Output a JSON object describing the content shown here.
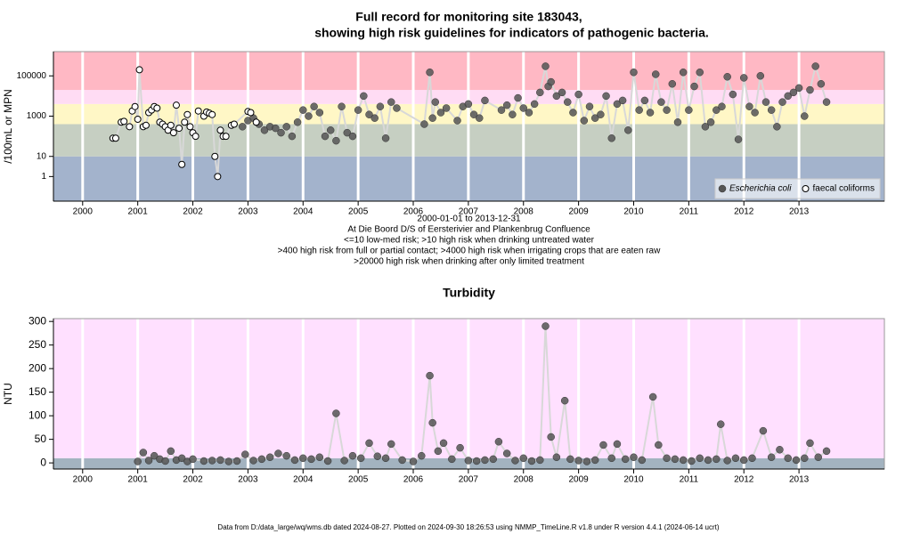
{
  "chart_data": [
    {
      "type": "scatter",
      "title": "Full record for monitoring site 183043,",
      "subtitle": "showing high risk guidelines for indicators of pathogenic bacteria.",
      "ylabel": "/100mL or MPN",
      "notes": [
        "2000-01-01 to 2013-12-31",
        "At Die Boord D/S of Eersterivier and Plankenbrug Confluence",
        "<=10 low-med risk; >10 high risk when drinking untreated water",
        ">400 high risk from full or partial contact; >4000 high risk when irrigating crops that are eaten raw",
        ">20000 high risk when drinking after only limited treatment"
      ],
      "log": true,
      "grid": true,
      "legend": "bottom-right",
      "xlim": [
        1999.47,
        2014.55
      ],
      "xticks": [
        2000,
        2001,
        2002,
        2003,
        2004,
        2005,
        2006,
        2007,
        2008,
        2009,
        2010,
        2011,
        2012,
        2013
      ],
      "ylim": [
        0.06,
        1600000
      ],
      "yticks": [
        1,
        10,
        1000,
        100000
      ],
      "bands": [
        {
          "max": 10,
          "color": "#a3b3cc"
        },
        {
          "min": 10,
          "max": 400,
          "color": "#c6cfc2"
        },
        {
          "min": 400,
          "max": 4000,
          "color": "#fff7c6"
        },
        {
          "min": 4000,
          "max": 20000,
          "color": "#ffdcf4"
        },
        {
          "min": 20000,
          "color": "#ffb8c4"
        }
      ],
      "series": [
        {
          "name": "Escherichia coli",
          "italic": true,
          "marker": "filled",
          "color": "#555555",
          "x": [
            2002.9,
            2003.0,
            2003.1,
            2003.2,
            2003.3,
            2003.4,
            2003.5,
            2003.6,
            2003.7,
            2003.8,
            2003.9,
            2004.0,
            2004.1,
            2004.2,
            2004.3,
            2004.4,
            2004.5,
            2004.6,
            2004.7,
            2004.8,
            2004.9,
            2005.0,
            2005.1,
            2005.2,
            2005.3,
            2005.4,
            2005.5,
            2005.6,
            2005.7,
            2006.2,
            2006.3,
            2006.35,
            2006.4,
            2006.5,
            2006.6,
            2006.8,
            2006.9,
            2007.0,
            2007.1,
            2007.2,
            2007.3,
            2007.6,
            2007.7,
            2007.8,
            2007.9,
            2008.0,
            2008.1,
            2008.2,
            2008.3,
            2008.4,
            2008.45,
            2008.5,
            2008.6,
            2008.7,
            2008.8,
            2008.9,
            2009.0,
            2009.1,
            2009.2,
            2009.3,
            2009.4,
            2009.5,
            2009.6,
            2009.7,
            2009.8,
            2009.9,
            2010.0,
            2010.1,
            2010.2,
            2010.3,
            2010.4,
            2010.5,
            2010.6,
            2010.7,
            2010.8,
            2010.9,
            2011.0,
            2011.1,
            2011.2,
            2011.3,
            2011.4,
            2011.5,
            2011.6,
            2011.7,
            2011.8,
            2011.9,
            2012.0,
            2012.1,
            2012.2,
            2012.3,
            2012.4,
            2012.5,
            2012.6,
            2012.7,
            2012.8,
            2012.9,
            2013.0,
            2013.1,
            2013.2,
            2013.3,
            2013.4,
            2013.5
          ],
          "values": [
            300,
            600,
            800,
            400,
            200,
            300,
            250,
            150,
            300,
            100,
            500,
            2000,
            1000,
            3000,
            1500,
            100,
            200,
            60,
            3000,
            150,
            100,
            2000,
            10000,
            1200,
            800,
            3000,
            80,
            5000,
            2500,
            400,
            150000,
            800,
            5000,
            1500,
            2500,
            600,
            3000,
            4000,
            1200,
            800,
            6000,
            2000,
            3500,
            1200,
            8000,
            2500,
            1500,
            4000,
            15000,
            300000,
            30000,
            50000,
            10000,
            15000,
            5000,
            1500,
            12000,
            600,
            3000,
            800,
            1200,
            10000,
            80,
            4000,
            6000,
            200,
            150000,
            2000,
            6000,
            1500,
            120000,
            5000,
            2000,
            40000,
            500,
            150000,
            2000,
            30000,
            150000,
            300,
            500,
            2000,
            3000,
            90000,
            12000,
            70,
            80000,
            3000,
            1500,
            100000,
            5000,
            2000,
            300,
            5000,
            10000,
            15000,
            25000,
            1000,
            20000,
            300000,
            40000,
            5000
          ]
        },
        {
          "name": "faecal coliforms",
          "marker": "open",
          "color": "#000000",
          "x": [
            2000.55,
            2000.6,
            2000.7,
            2000.75,
            2000.85,
            2000.9,
            2000.95,
            2001.0,
            2001.03,
            2001.1,
            2001.15,
            2001.2,
            2001.25,
            2001.3,
            2001.35,
            2001.4,
            2001.45,
            2001.5,
            2001.55,
            2001.6,
            2001.65,
            2001.7,
            2001.75,
            2001.8,
            2001.85,
            2001.9,
            2001.95,
            2002.0,
            2002.05,
            2002.1,
            2002.2,
            2002.25,
            2002.3,
            2002.35,
            2002.4,
            2002.45,
            2002.5,
            2002.55,
            2002.6,
            2002.7,
            2002.75,
            2003.0,
            2003.05,
            2003.15
          ],
          "values": [
            80,
            80,
            500,
            550,
            300,
            1800,
            3000,
            700,
            200000,
            300,
            350,
            1500,
            2000,
            3000,
            2500,
            500,
            400,
            300,
            200,
            350,
            150,
            3500,
            250,
            4,
            500,
            1200,
            300,
            150,
            100,
            1800,
            1000,
            1600,
            1400,
            1200,
            10,
            1,
            200,
            100,
            100,
            350,
            400,
            1700,
            1500,
            500
          ]
        }
      ]
    },
    {
      "type": "scatter",
      "title": "Turbidity",
      "ylabel": "NTU",
      "log": false,
      "grid": true,
      "xlim": [
        1999.47,
        2014.55
      ],
      "xticks": [
        2000,
        2001,
        2002,
        2003,
        2004,
        2005,
        2006,
        2007,
        2008,
        2009,
        2010,
        2011,
        2012,
        2013
      ],
      "ylim": [
        -13,
        306
      ],
      "yticks": [
        0,
        50,
        100,
        150,
        200,
        250,
        300
      ],
      "bands": [
        {
          "max": 10,
          "color": "#a3b3c0"
        },
        {
          "min": 10,
          "color": "#ffe0ff"
        }
      ],
      "series": [
        {
          "marker": "filled",
          "color": "#555555",
          "x": [
            2001.0,
            2001.1,
            2001.2,
            2001.3,
            2001.4,
            2001.5,
            2001.6,
            2001.7,
            2001.8,
            2001.9,
            2002.0,
            2002.2,
            2002.35,
            2002.5,
            2002.65,
            2002.8,
            2002.95,
            2003.1,
            2003.25,
            2003.4,
            2003.55,
            2003.7,
            2003.85,
            2004.0,
            2004.15,
            2004.3,
            2004.45,
            2004.6,
            2004.75,
            2004.9,
            2005.05,
            2005.2,
            2005.35,
            2005.5,
            2005.6,
            2005.8,
            2006.0,
            2006.15,
            2006.3,
            2006.35,
            2006.45,
            2006.55,
            2006.7,
            2006.85,
            2007.0,
            2007.15,
            2007.3,
            2007.45,
            2007.55,
            2007.7,
            2007.85,
            2008.0,
            2008.15,
            2008.3,
            2008.4,
            2008.5,
            2008.6,
            2008.75,
            2008.85,
            2009.0,
            2009.15,
            2009.3,
            2009.45,
            2009.6,
            2009.7,
            2009.85,
            2010.0,
            2010.15,
            2010.35,
            2010.45,
            2010.6,
            2010.75,
            2010.9,
            2011.05,
            2011.2,
            2011.35,
            2011.5,
            2011.58,
            2011.7,
            2011.85,
            2012.0,
            2012.15,
            2012.35,
            2012.5,
            2012.65,
            2012.8,
            2012.95,
            2013.1,
            2013.2,
            2013.35,
            2013.5
          ],
          "values": [
            3,
            22,
            5,
            15,
            8,
            4,
            25,
            6,
            10,
            3,
            8,
            4,
            5,
            6,
            3,
            4,
            18,
            5,
            8,
            12,
            20,
            15,
            6,
            10,
            8,
            12,
            4,
            105,
            5,
            15,
            10,
            42,
            14,
            10,
            40,
            6,
            3,
            15,
            185,
            85,
            25,
            42,
            8,
            32,
            5,
            4,
            6,
            8,
            45,
            20,
            5,
            10,
            4,
            6,
            290,
            55,
            12,
            132,
            8,
            5,
            3,
            6,
            38,
            10,
            40,
            8,
            12,
            6,
            140,
            38,
            10,
            8,
            6,
            4,
            10,
            6,
            8,
            82,
            5,
            10,
            6,
            10,
            68,
            12,
            28,
            10,
            6,
            10,
            42,
            12,
            25
          ]
        }
      ]
    }
  ],
  "footer": "Data from D:/data_large/wq/wms.db dated 2024-08-27. Plotted on 2024-09-30 18:26:53 using NMMP_TimeLine.R v1.8 under R version 4.4.1 (2024-06-14 ucrt)"
}
